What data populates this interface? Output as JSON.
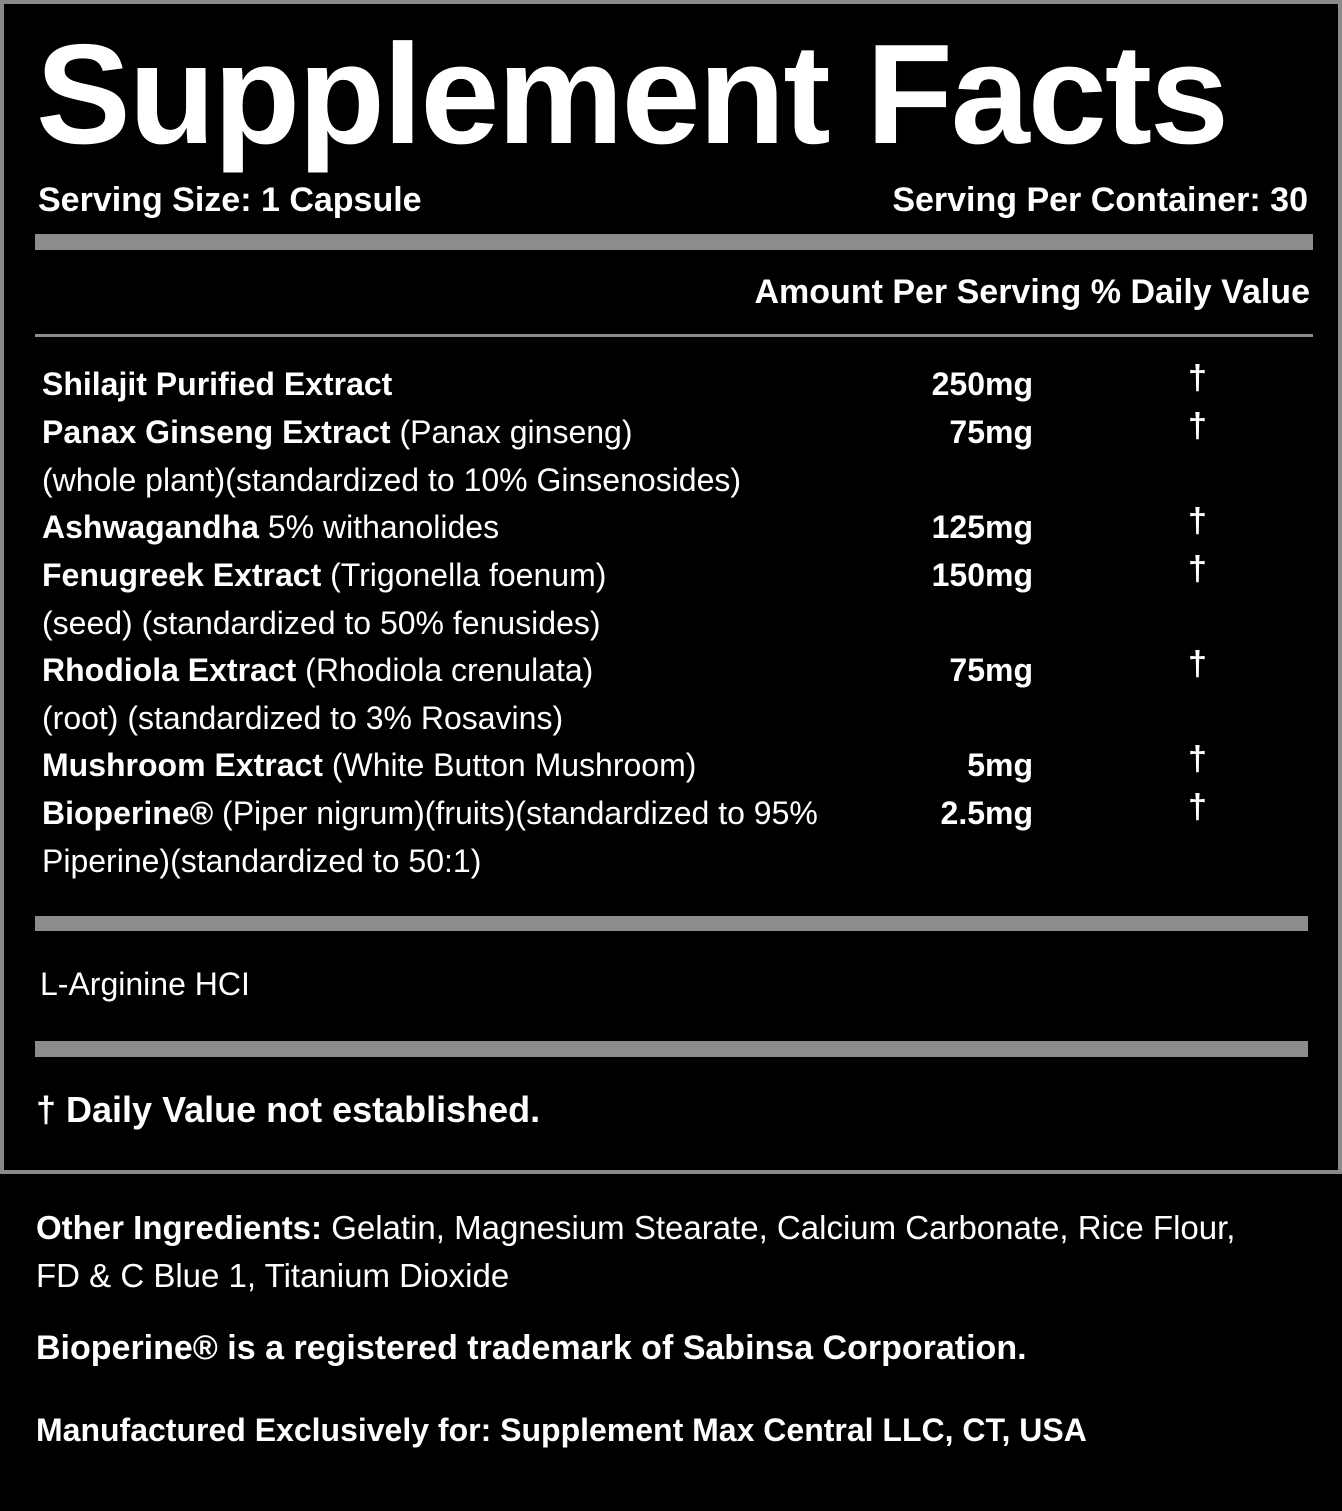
{
  "title": "Supplement Facts",
  "serving_size": "Serving Size: 1 Capsule",
  "servings_per_container": "Serving Per Container: 30",
  "column_header": "Amount Per Serving % Daily Value",
  "ingredients": [
    {
      "name": "Shilajit Purified Extract",
      "desc": "",
      "amount": "250mg",
      "dv": "†"
    },
    {
      "name": "Panax Ginseng Extract",
      "desc": " (Panax ginseng)",
      "amount": "75mg",
      "dv": "†",
      "cont": "(whole plant)(standardized to 10% Ginsenosides)"
    },
    {
      "name": "Ashwagandha",
      "desc": " 5% withanolides",
      "amount": "125mg",
      "dv": "†"
    },
    {
      "name": "Fenugreek Extract",
      "desc": " (Trigonella foenum)",
      "amount": "150mg",
      "dv": "†",
      "cont": "(seed) (standardized to 50% fenusides)"
    },
    {
      "name": "Rhodiola Extract",
      "desc": " (Rhodiola crenulata)",
      "amount": "75mg",
      "dv": "†",
      "cont": "(root) (standardized to 3% Rosavins)"
    },
    {
      "name": "Mushroom Extract",
      "desc": " (White Button Mushroom)",
      "amount": "5mg",
      "dv": "†"
    },
    {
      "name": "Bioperine®",
      "desc": " (Piper nigrum)(fruits)(standardized to 95%",
      "amount": "2.5mg",
      "dv": "†",
      "cont": "Piperine)(standardized to 50:1)"
    }
  ],
  "other_blend": "L-Arginine HCI",
  "footnote": "† Daily Value not established.",
  "other_ingredients_label": "Other Ingredients:",
  "other_ingredients_line1": " Gelatin, Magnesium Stearate, Calcium Carbonate, Rice Flour,",
  "other_ingredients_line2": "FD & C Blue 1, Titanium Dioxide",
  "trademark": "Bioperine® is a registered trademark of Sabinsa Corporation.",
  "manufacturer": "Manufactured Exclusively for: Supplement Max Central LLC, CT, USA"
}
